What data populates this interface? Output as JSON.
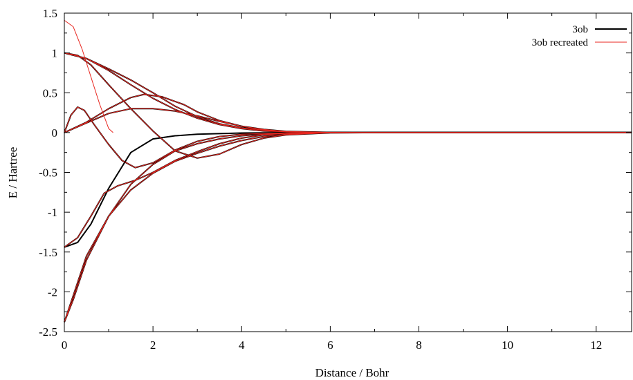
{
  "chart_data": {
    "type": "line",
    "title": "",
    "xlabel": "Distance / Bohr",
    "ylabel": "E / Hartree",
    "xlim": [
      0,
      12.8
    ],
    "ylim": [
      -2.5,
      1.5
    ],
    "x_ticks": [
      0,
      2,
      4,
      6,
      8,
      10,
      12
    ],
    "x_tick_labels": [
      "0",
      "2",
      "4",
      "6",
      "8",
      "10",
      "12"
    ],
    "y_ticks": [
      1.5,
      1,
      0.5,
      0,
      -0.5,
      -1,
      -1.5,
      -2,
      -2.5
    ],
    "y_tick_labels": [
      "1.5",
      "1",
      "0.5",
      "0",
      "-0.5",
      "-1",
      "-1.5",
      "-2",
      "-2.5"
    ],
    "grid": false,
    "legend_position": "top-right",
    "legend": [
      {
        "label": "3ob",
        "color": "#000000"
      },
      {
        "label": "3ob recreated",
        "color": "#e8261f"
      }
    ],
    "series": [
      {
        "legend": "3ob",
        "color": "#000000",
        "points": [
          [
            0,
            1.0
          ],
          [
            0.5,
            0.93
          ],
          [
            1,
            0.8
          ],
          [
            1.5,
            0.66
          ],
          [
            2,
            0.5
          ],
          [
            2.5,
            0.33
          ],
          [
            3,
            0.2
          ],
          [
            3.5,
            0.11
          ],
          [
            4,
            0.06
          ],
          [
            4.5,
            0.03
          ],
          [
            5,
            0.012
          ],
          [
            5.5,
            0.005
          ],
          [
            6,
            0.002
          ],
          [
            7,
            0
          ],
          [
            12.8,
            0
          ]
        ]
      },
      {
        "legend": "3ob",
        "color": "#000000",
        "points": [
          [
            0,
            1.0
          ],
          [
            0.5,
            0.93
          ],
          [
            1,
            0.78
          ],
          [
            1.5,
            0.6
          ],
          [
            2,
            0.43
          ],
          [
            2.5,
            0.29
          ],
          [
            3,
            0.18
          ],
          [
            3.5,
            0.1
          ],
          [
            4,
            0.05
          ],
          [
            4.5,
            0.02
          ],
          [
            5,
            0.01
          ],
          [
            6,
            0.001
          ],
          [
            7,
            0
          ],
          [
            12.8,
            0
          ]
        ]
      },
      {
        "legend": "3ob",
        "color": "#000000",
        "points": [
          [
            0,
            1.0
          ],
          [
            0.3,
            0.97
          ],
          [
            0.6,
            0.85
          ],
          [
            1,
            0.6
          ],
          [
            1.5,
            0.3
          ],
          [
            2,
            0.02
          ],
          [
            2.5,
            -0.23
          ],
          [
            3,
            -0.32
          ],
          [
            3.5,
            -0.27
          ],
          [
            4,
            -0.15
          ],
          [
            4.5,
            -0.07
          ],
          [
            5,
            -0.03
          ],
          [
            6,
            -0.004
          ],
          [
            7,
            0
          ],
          [
            12.8,
            0
          ]
        ]
      },
      {
        "legend": "3ob",
        "color": "#000000",
        "points": [
          [
            0,
            0
          ],
          [
            0.5,
            0.13
          ],
          [
            1,
            0.3
          ],
          [
            1.5,
            0.44
          ],
          [
            1.8,
            0.48
          ],
          [
            2.2,
            0.45
          ],
          [
            2.7,
            0.35
          ],
          [
            3,
            0.26
          ],
          [
            3.5,
            0.15
          ],
          [
            4,
            0.08
          ],
          [
            4.5,
            0.04
          ],
          [
            5,
            0.015
          ],
          [
            6,
            0.002
          ],
          [
            7,
            0
          ],
          [
            12.8,
            0
          ]
        ]
      },
      {
        "legend": "3ob",
        "color": "#000000",
        "points": [
          [
            0,
            0
          ],
          [
            0.15,
            0.22
          ],
          [
            0.3,
            0.32
          ],
          [
            0.45,
            0.28
          ],
          [
            0.7,
            0.08
          ],
          [
            1,
            -0.15
          ],
          [
            1.3,
            -0.35
          ],
          [
            1.6,
            -0.44
          ],
          [
            2,
            -0.38
          ],
          [
            2.5,
            -0.22
          ],
          [
            3,
            -0.11
          ],
          [
            3.5,
            -0.05
          ],
          [
            4,
            -0.02
          ],
          [
            5,
            -0.003
          ],
          [
            6,
            0
          ],
          [
            12.8,
            0
          ]
        ]
      },
      {
        "legend": "3ob",
        "color": "#000000",
        "points": [
          [
            0,
            0
          ],
          [
            0.5,
            0.12
          ],
          [
            1,
            0.24
          ],
          [
            1.5,
            0.3
          ],
          [
            2,
            0.3
          ],
          [
            2.5,
            0.27
          ],
          [
            3,
            0.21
          ],
          [
            3.5,
            0.14
          ],
          [
            4,
            0.08
          ],
          [
            4.5,
            0.035
          ],
          [
            5,
            0.012
          ],
          [
            6,
            0.001
          ],
          [
            7,
            0
          ],
          [
            12.8,
            0
          ]
        ]
      },
      {
        "legend": "3ob",
        "color": "#000000",
        "points": [
          [
            0,
            -1.44
          ],
          [
            0.3,
            -1.38
          ],
          [
            0.6,
            -1.15
          ],
          [
            1,
            -0.7
          ],
          [
            1.5,
            -0.25
          ],
          [
            2,
            -0.08
          ],
          [
            2.5,
            -0.04
          ],
          [
            3,
            -0.02
          ],
          [
            4,
            -0.005
          ],
          [
            5,
            0
          ],
          [
            12.8,
            0
          ]
        ]
      },
      {
        "legend": "3ob",
        "color": "#000000",
        "points": [
          [
            0,
            -1.44
          ],
          [
            0.3,
            -1.32
          ],
          [
            0.6,
            -1.05
          ],
          [
            0.9,
            -0.76
          ],
          [
            1.2,
            -0.67
          ],
          [
            1.6,
            -0.6
          ],
          [
            2,
            -0.5
          ],
          [
            2.5,
            -0.35
          ],
          [
            3,
            -0.24
          ],
          [
            3.5,
            -0.14
          ],
          [
            4,
            -0.07
          ],
          [
            4.5,
            -0.03
          ],
          [
            5,
            -0.01
          ],
          [
            6,
            -0.001
          ],
          [
            7,
            0
          ],
          [
            12.8,
            0
          ]
        ]
      },
      {
        "legend": "3ob",
        "color": "#000000",
        "points": [
          [
            0,
            -2.38
          ],
          [
            0.2,
            -2.1
          ],
          [
            0.5,
            -1.6
          ],
          [
            1,
            -1.05
          ],
          [
            1.5,
            -0.65
          ],
          [
            2,
            -0.4
          ],
          [
            2.5,
            -0.23
          ],
          [
            3,
            -0.14
          ],
          [
            3.5,
            -0.08
          ],
          [
            4,
            -0.04
          ],
          [
            4.5,
            -0.02
          ],
          [
            5,
            -0.008
          ],
          [
            6,
            -0.001
          ],
          [
            7,
            0
          ],
          [
            12.8,
            0
          ]
        ]
      },
      {
        "legend": "3ob",
        "color": "#000000",
        "points": [
          [
            0,
            -2.38
          ],
          [
            0.2,
            -2.05
          ],
          [
            0.5,
            -1.55
          ],
          [
            1,
            -1.05
          ],
          [
            1.5,
            -0.72
          ],
          [
            2,
            -0.51
          ],
          [
            2.5,
            -0.36
          ],
          [
            3,
            -0.26
          ],
          [
            3.5,
            -0.17
          ],
          [
            4,
            -0.1
          ],
          [
            4.5,
            -0.05
          ],
          [
            5,
            -0.02
          ],
          [
            6,
            -0.002
          ],
          [
            7,
            0
          ],
          [
            12.8,
            0
          ]
        ]
      },
      {
        "legend": "3ob recreated",
        "color": "#e8261f",
        "points": [
          [
            0,
            1.41
          ],
          [
            0.2,
            1.33
          ],
          [
            0.4,
            1.05
          ],
          [
            0.6,
            0.7
          ],
          [
            0.8,
            0.35
          ],
          [
            1,
            0.05
          ],
          [
            1.1,
            0
          ]
        ]
      },
      {
        "legend": "3ob recreated",
        "color": "#e8261f",
        "points": [
          [
            0,
            1.0
          ],
          [
            0.5,
            0.93
          ],
          [
            1,
            0.8
          ],
          [
            1.5,
            0.66
          ],
          [
            2,
            0.5
          ],
          [
            2.5,
            0.33
          ],
          [
            3,
            0.2
          ],
          [
            3.5,
            0.11
          ],
          [
            4,
            0.06
          ],
          [
            4.5,
            0.03
          ],
          [
            5,
            0.012
          ],
          [
            5.5,
            0.005
          ],
          [
            6,
            0.002
          ],
          [
            7,
            0
          ],
          [
            12.8,
            0
          ]
        ]
      },
      {
        "legend": "3ob recreated",
        "color": "#e8261f",
        "points": [
          [
            0,
            1.0
          ],
          [
            0.5,
            0.93
          ],
          [
            1,
            0.78
          ],
          [
            1.5,
            0.6
          ],
          [
            2,
            0.43
          ],
          [
            2.5,
            0.29
          ],
          [
            3,
            0.18
          ],
          [
            3.5,
            0.1
          ],
          [
            4,
            0.05
          ],
          [
            4.5,
            0.02
          ],
          [
            5,
            0.01
          ],
          [
            6,
            0.001
          ],
          [
            7,
            0
          ],
          [
            12.8,
            0
          ]
        ]
      },
      {
        "legend": "3ob recreated",
        "color": "#e8261f",
        "points": [
          [
            0,
            1.0
          ],
          [
            0.3,
            0.97
          ],
          [
            0.6,
            0.85
          ],
          [
            1,
            0.6
          ],
          [
            1.5,
            0.3
          ],
          [
            2,
            0.02
          ],
          [
            2.5,
            -0.23
          ],
          [
            3,
            -0.32
          ],
          [
            3.5,
            -0.27
          ],
          [
            4,
            -0.15
          ],
          [
            4.5,
            -0.07
          ],
          [
            5,
            -0.03
          ],
          [
            6,
            -0.004
          ],
          [
            7,
            0
          ],
          [
            12.8,
            0
          ]
        ]
      },
      {
        "legend": "3ob recreated",
        "color": "#e8261f",
        "points": [
          [
            0,
            0
          ],
          [
            0.5,
            0.13
          ],
          [
            1,
            0.3
          ],
          [
            1.5,
            0.44
          ],
          [
            1.8,
            0.48
          ],
          [
            2.2,
            0.45
          ],
          [
            2.7,
            0.35
          ],
          [
            3,
            0.26
          ],
          [
            3.5,
            0.15
          ],
          [
            4,
            0.08
          ],
          [
            4.5,
            0.04
          ],
          [
            5,
            0.015
          ],
          [
            6,
            0.002
          ],
          [
            7,
            0
          ],
          [
            12.8,
            0
          ]
        ]
      },
      {
        "legend": "3ob recreated",
        "color": "#e8261f",
        "points": [
          [
            0,
            0
          ],
          [
            0.15,
            0.22
          ],
          [
            0.3,
            0.32
          ],
          [
            0.45,
            0.28
          ],
          [
            0.7,
            0.08
          ],
          [
            1,
            -0.15
          ],
          [
            1.3,
            -0.35
          ],
          [
            1.6,
            -0.44
          ],
          [
            2,
            -0.38
          ],
          [
            2.5,
            -0.22
          ],
          [
            3,
            -0.11
          ],
          [
            3.5,
            -0.05
          ],
          [
            4,
            -0.02
          ],
          [
            5,
            -0.003
          ],
          [
            6,
            0
          ],
          [
            12.8,
            0
          ]
        ]
      },
      {
        "legend": "3ob recreated",
        "color": "#e8261f",
        "points": [
          [
            0,
            0
          ],
          [
            0.5,
            0.12
          ],
          [
            1,
            0.24
          ],
          [
            1.5,
            0.3
          ],
          [
            2,
            0.3
          ],
          [
            2.5,
            0.27
          ],
          [
            3,
            0.21
          ],
          [
            3.5,
            0.14
          ],
          [
            4,
            0.08
          ],
          [
            4.5,
            0.035
          ],
          [
            5,
            0.012
          ],
          [
            6,
            0.001
          ],
          [
            7,
            0
          ],
          [
            12.8,
            0
          ]
        ]
      },
      {
        "legend": "3ob recreated",
        "color": "#e8261f",
        "points": [
          [
            0,
            -1.44
          ],
          [
            0.3,
            -1.32
          ],
          [
            0.6,
            -1.05
          ],
          [
            0.9,
            -0.76
          ],
          [
            1.2,
            -0.67
          ],
          [
            1.6,
            -0.6
          ],
          [
            2,
            -0.5
          ],
          [
            2.5,
            -0.35
          ],
          [
            3,
            -0.24
          ],
          [
            3.5,
            -0.14
          ],
          [
            4,
            -0.07
          ],
          [
            4.5,
            -0.03
          ],
          [
            5,
            -0.01
          ],
          [
            6,
            -0.001
          ],
          [
            7,
            0
          ],
          [
            12.8,
            0
          ]
        ]
      },
      {
        "legend": "3ob recreated",
        "color": "#e8261f",
        "points": [
          [
            0,
            -2.38
          ],
          [
            0.2,
            -2.1
          ],
          [
            0.5,
            -1.6
          ],
          [
            1,
            -1.05
          ],
          [
            1.5,
            -0.65
          ],
          [
            2,
            -0.4
          ],
          [
            2.5,
            -0.23
          ],
          [
            3,
            -0.14
          ],
          [
            3.5,
            -0.08
          ],
          [
            4,
            -0.04
          ],
          [
            4.5,
            -0.02
          ],
          [
            5,
            -0.008
          ],
          [
            6,
            -0.001
          ],
          [
            7,
            0
          ],
          [
            12.8,
            0
          ]
        ]
      },
      {
        "legend": "3ob recreated",
        "color": "#e8261f",
        "points": [
          [
            0,
            -2.38
          ],
          [
            0.2,
            -2.05
          ],
          [
            0.5,
            -1.55
          ],
          [
            1,
            -1.05
          ],
          [
            1.5,
            -0.72
          ],
          [
            2,
            -0.51
          ],
          [
            2.5,
            -0.36
          ],
          [
            3,
            -0.26
          ],
          [
            3.5,
            -0.17
          ],
          [
            4,
            -0.1
          ],
          [
            4.5,
            -0.05
          ],
          [
            5,
            -0.02
          ],
          [
            6,
            -0.002
          ],
          [
            7,
            0
          ],
          [
            12.8,
            0
          ]
        ]
      }
    ]
  }
}
